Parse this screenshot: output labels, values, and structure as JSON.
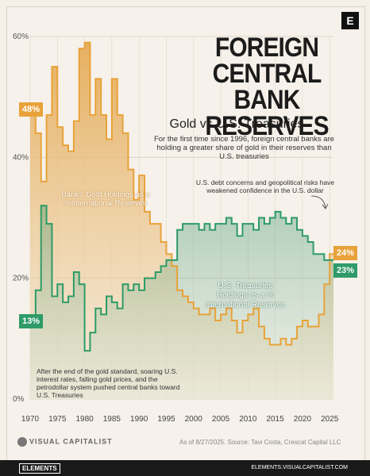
{
  "title_line1": "FOREIGN CENTRAL",
  "title_line2": "BANK RESERVES",
  "subtitle": "Gold vs U.S. Treasuries",
  "description": "For the first time since 1996, foreign central banks are holding a greater share of gold in their reserves than U.S. treasuries",
  "logo_letter": "E",
  "annotation_top": "U.S. debt concerns and geopolitical risks have weakened confidence in the U.S. dollar",
  "annotation_bottom": "After the end of the gold standard, soaring U.S. interest rates, falling gold prices, and the petrodollar system pushed central banks toward U.S. Treasuries",
  "gold_series_label": "Banks' Gold Holdings as a %International Reserves",
  "treasury_series_label": "U.S. Treasuries Holdings as a % International Reserves",
  "badges": {
    "gold_start": "48%",
    "treasury_start": "13%",
    "gold_end": "24%",
    "treasury_end": "23%"
  },
  "footer": {
    "brand": "VISUAL CAPITALIST",
    "source": "As of 8/27/2025. Source: Tavi Costa, Crescat Capital LLC",
    "elements": "ELEMENTS",
    "url": "ELEMENTS.VISUALCAPITALIST.COM"
  },
  "colors": {
    "gold": "#e8a23a",
    "treasury": "#2e9b68",
    "gold_fill_top": "#e3a447",
    "treasury_fill": "#2f8a61"
  },
  "chart_data": {
    "type": "area",
    "xlim": [
      1970,
      2025.7
    ],
    "ylim": [
      0,
      60
    ],
    "x_ticks": [
      "1970",
      "1975",
      "1980",
      "1985",
      "1990",
      "1995",
      "2000",
      "2005",
      "2010",
      "2015",
      "2020",
      "2025"
    ],
    "y_ticks": [
      "0%",
      "20%",
      "40%",
      "60%"
    ],
    "series": [
      {
        "name": "Banks' Gold Holdings as a %International Reserves",
        "x": [
          1970,
          1971,
          1972,
          1973,
          1974,
          1975,
          1976,
          1977,
          1978,
          1979,
          1980,
          1981,
          1982,
          1983,
          1984,
          1985,
          1986,
          1987,
          1988,
          1989,
          1990,
          1991,
          1992,
          1993,
          1994,
          1995,
          1996,
          1997,
          1998,
          1999,
          2000,
          2001,
          2002,
          2003,
          2004,
          2005,
          2006,
          2007,
          2008,
          2009,
          2010,
          2011,
          2012,
          2013,
          2014,
          2015,
          2016,
          2017,
          2018,
          2019,
          2020,
          2021,
          2022,
          2023,
          2024,
          2025
        ],
        "values": [
          48,
          44,
          36,
          47,
          55,
          45,
          42,
          41,
          46,
          58,
          59,
          47,
          53,
          47,
          43,
          53,
          47,
          44,
          38,
          33,
          37,
          31,
          29,
          29,
          26,
          24,
          22,
          18,
          17,
          16,
          15,
          14,
          14,
          15,
          13,
          14,
          15,
          13,
          11,
          13,
          14,
          15,
          12,
          10,
          9,
          9,
          10,
          9,
          10,
          12,
          13,
          12,
          12,
          14,
          19,
          24
        ]
      },
      {
        "name": "U.S. Treasuries Holdings as a % International Reserves",
        "x": [
          1970,
          1971,
          1972,
          1973,
          1974,
          1975,
          1976,
          1977,
          1978,
          1979,
          1980,
          1981,
          1982,
          1983,
          1984,
          1985,
          1986,
          1987,
          1988,
          1989,
          1990,
          1991,
          1992,
          1993,
          1994,
          1995,
          1996,
          1997,
          1998,
          1999,
          2000,
          2001,
          2002,
          2003,
          2004,
          2005,
          2006,
          2007,
          2008,
          2009,
          2010,
          2011,
          2012,
          2013,
          2014,
          2015,
          2016,
          2017,
          2018,
          2019,
          2020,
          2021,
          2022,
          2023,
          2024,
          2025
        ],
        "values": [
          13,
          18,
          32,
          29,
          17,
          19,
          16,
          17,
          21,
          19,
          8,
          11,
          15,
          14,
          17,
          16,
          15,
          19,
          18,
          19,
          18,
          20,
          20,
          21,
          22,
          23,
          23,
          28,
          29,
          29,
          29,
          28,
          29,
          28,
          29,
          29,
          30,
          29,
          27,
          29,
          29,
          28,
          30,
          29,
          30,
          31,
          30,
          29,
          30,
          28,
          27,
          26,
          24,
          24,
          23,
          23
        ]
      }
    ]
  }
}
